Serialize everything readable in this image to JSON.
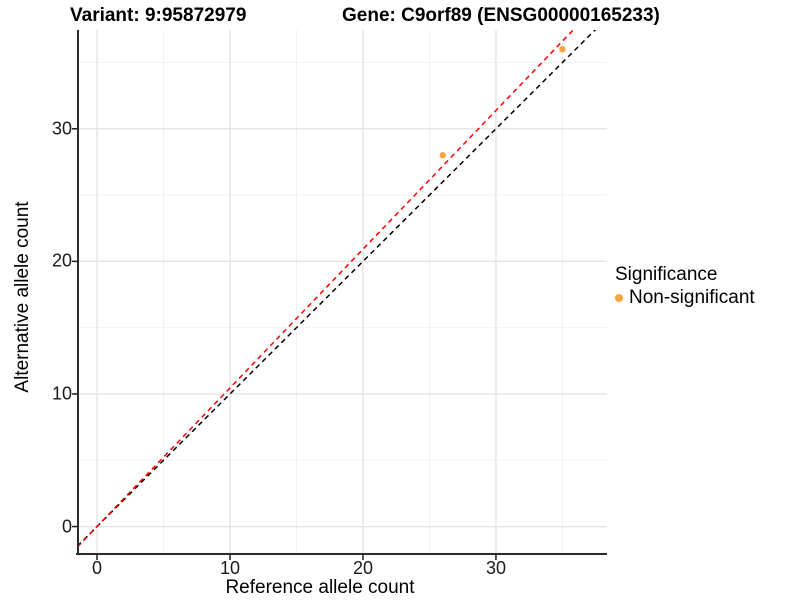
{
  "chart_data": {
    "type": "scatter",
    "titles": {
      "variant": "Variant: 9:95872979",
      "gene": "Gene: C9orf89 (ENSG00000165233)"
    },
    "xlabel": "Reference allele count",
    "ylabel": "Alternative allele count",
    "x_ticks": [
      0,
      10,
      20,
      30
    ],
    "y_ticks": [
      0,
      10,
      20,
      30
    ],
    "x_minor_ticks": [
      5,
      15,
      25,
      35
    ],
    "y_minor_ticks": [
      5,
      15,
      25,
      35
    ],
    "xlim": [
      -1.43,
      38.35
    ],
    "ylim": [
      -2.07,
      37.45
    ],
    "points": [
      {
        "x": 26,
        "y": 28,
        "significance": "Non-significant"
      },
      {
        "x": 35,
        "y": 36,
        "significance": "Non-significant"
      }
    ],
    "lines": [
      {
        "name": "identity-line",
        "slope": 1.0,
        "intercept": 0,
        "color": "#000000",
        "style": "dashed"
      },
      {
        "name": "fit-line",
        "slope": 1.046,
        "intercept": 0,
        "color": "#FF0000",
        "style": "dashed"
      }
    ],
    "legend": {
      "title": "Significance",
      "items": [
        {
          "label": "Non-significant",
          "color": "#F9A440"
        }
      ]
    },
    "colors": {
      "point": "#F9A440",
      "grid_major": "#E4E4E4",
      "grid_minor": "#F2F2F2",
      "axis": "#2B2B2B"
    },
    "grid": true,
    "legend_position": "right"
  }
}
